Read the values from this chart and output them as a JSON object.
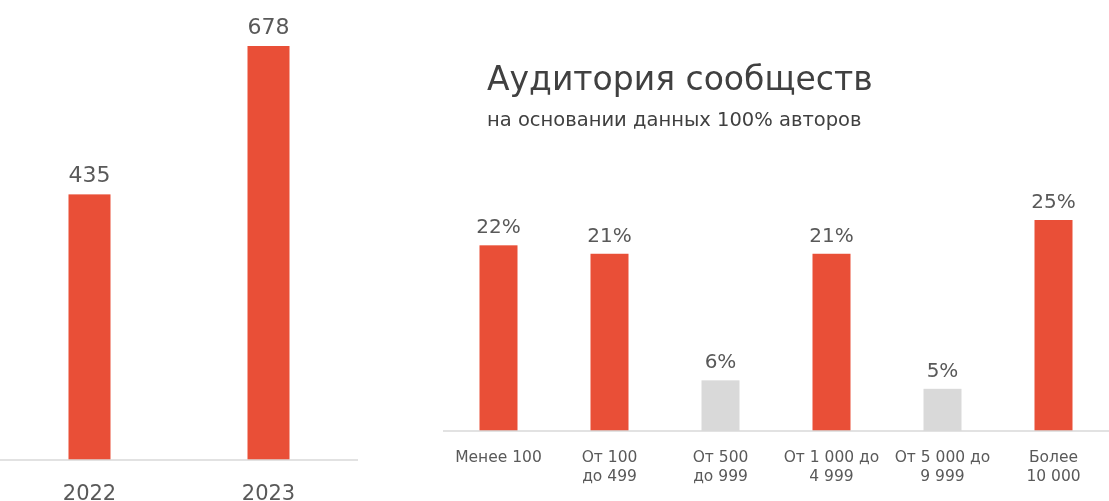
{
  "chart_data": [
    {
      "type": "bar",
      "categories": [
        "2022",
        "2023"
      ],
      "values": [
        435,
        678
      ],
      "colors": [
        "#e94f37",
        "#e94f37"
      ],
      "data_labels": true
    },
    {
      "type": "bar",
      "title": "Аудитория сообществ",
      "subtitle": "на основании данных 100% авторов",
      "categories": [
        "Менее 100",
        "От 100 до 499",
        "От 500 до 999",
        "От 1 000 до 4 999",
        "От 5 000 до 9 999",
        "Более 10 000"
      ],
      "values": [
        22,
        21,
        6,
        21,
        5,
        25
      ],
      "value_labels": [
        "22%",
        "21%",
        "6%",
        "21%",
        "5%",
        "25%"
      ],
      "colors": [
        "#e94f37",
        "#e94f37",
        "#d9d9d9",
        "#e94f37",
        "#d9d9d9",
        "#e94f37"
      ]
    }
  ]
}
